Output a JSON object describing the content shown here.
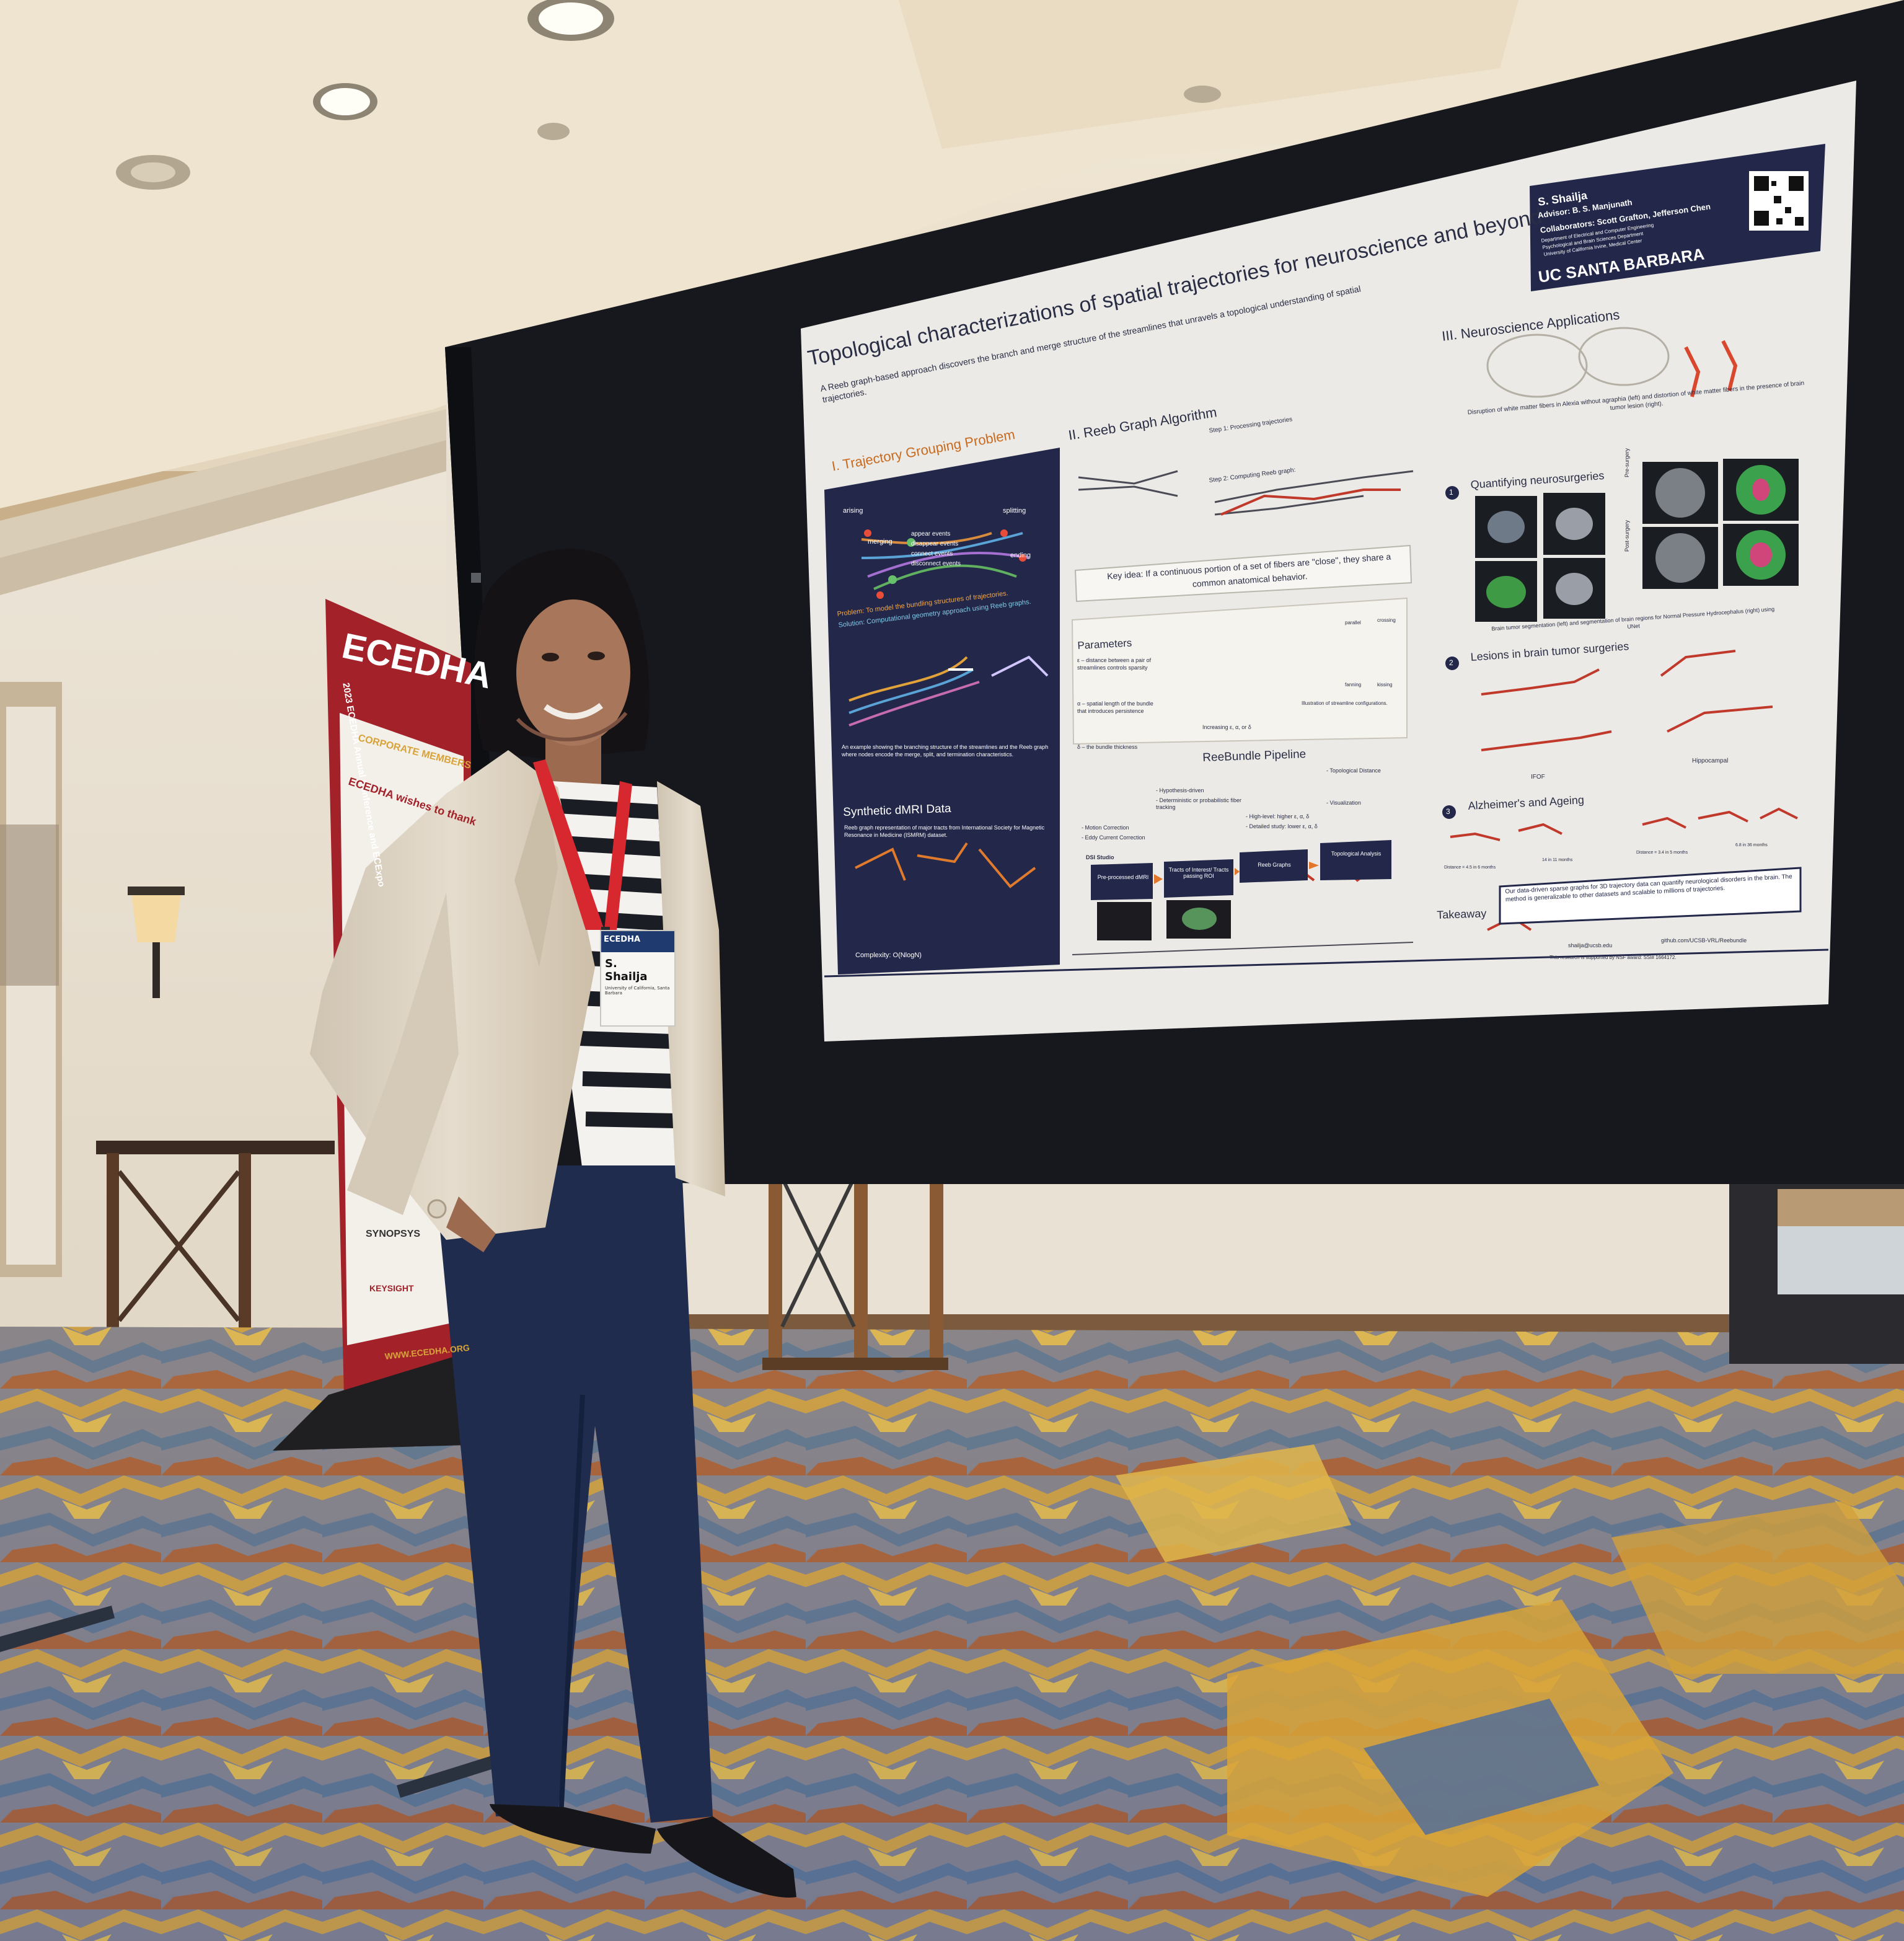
{
  "banner": {
    "logo_text": "ECEDHA",
    "event_line": "2023 ECEDHA Annual Conference and ECExpo",
    "section_label": "CORPORATE MEMBERS",
    "thanks_line": "ECEDHA wishes to thank",
    "sponsor_1": "SYNOPSYS",
    "sponsor_2": "KEYSIGHT",
    "website": "WWW.ECEDHA.ORG"
  },
  "badge": {
    "header": "ECEDHA",
    "name_first": "S.",
    "name_last": "Shailja",
    "affiliation": "University of California, Santa Barbara"
  },
  "poster": {
    "title": "Topological characterizations of spatial trajectories for neuroscience and beyond",
    "subtitle": "A Reeb graph-based approach discovers the branch and merge structure of the streamlines that unravels a topological understanding of spatial trajectories.",
    "author": "S. Shailja",
    "advisor": "Advisor: B. S. Manjunath",
    "collaborators": "Collaborators: Scott Grafton, Jefferson Chen",
    "dept_1": "Department of Electrical and Computer Engineering",
    "dept_2": "Psychological and Brain Sciences Department",
    "dept_3": "University of California Irvine, Medical Center",
    "university": "UC SANTA BARBARA",
    "section_1": "I. Trajectory Grouping Problem",
    "section_1_labels": [
      "arising",
      "merging",
      "splitting",
      "ending",
      "appear events",
      "disappear events",
      "connect events",
      "disconnect events"
    ],
    "problem": "Problem: To model the bundling structures of trajectories.",
    "solution": "Solution: Computational geometry approach using Reeb graphs.",
    "example_caption": "An example showing the branching structure of the streamlines and the Reeb graph where nodes encode the merge, split, and termination characteristics.",
    "synthetic_title": "Synthetic dMRI Data",
    "synthetic_text": "Reeb graph representation of major tracts from International Society for Magnetic Resonance in Medicine (ISMRM) dataset.",
    "complexity": "Complexity: O(NlogN)",
    "section_2": "II. Reeb Graph Algorithm",
    "step_1": "Step 1: Processing trajectories",
    "step_2": "Step 2: Computing Reeb graph:",
    "key_idea": "Key idea: If a continuous portion of a set of fibers are \"close\", they share a common anatomical behavior.",
    "parameters_title": "Parameters",
    "param_eps": "ε – distance between a pair of streamlines controls sparsity",
    "param_alpha": "α – spatial length of the bundle that introduces persistence",
    "param_delta": "δ – the bundle thickness",
    "param_axis": "Increasing ε, α, or δ",
    "param_labels": [
      "parallel",
      "crossing",
      "fanning",
      "kissing"
    ],
    "param_caption": "Illustration of streamline configurations.",
    "pipeline_title": "ReeBundle Pipeline",
    "pipeline_steps": [
      "Pre-processed dMRI",
      "Tracts of Interest/ Tracts passing ROI",
      "Reeb Graphs",
      "Topological Analysis"
    ],
    "pipeline_notes": [
      "- Motion Correction",
      "- Eddy Current Correction",
      "- Hypothesis-driven",
      "- Deterministic or probabilistic fiber tracking",
      "- High-level: higher ε, α, δ",
      "- Detailed study: lower ε, α, δ",
      "- Topological Distance",
      "- Visualization"
    ],
    "dsi_label": "DSI Studio",
    "section_3": "III. Neuroscience Applications",
    "alexia_caption": "Disruption of white matter fibers in Alexia without agraphia (left) and distortion of white matter fibers in the presence of brain tumor lesion (right).",
    "app_1_num": "1",
    "app_1": "Quantifying neurosurgeries",
    "app_1_caption": "Brain tumor segmentation (left) and segmentation of brain regions for Normal Pressure Hydrocephalus (right) using UNet",
    "pre_surgery": "Pre-surgery",
    "post_surgery": "Post-surgery",
    "app_2_num": "2",
    "app_2": "Lesions in brain tumor surgeries",
    "app_2_labels": [
      "IFOF",
      "Hippocampal"
    ],
    "app_3_num": "3",
    "app_3": "Alzheimer's and Ageing",
    "app_3_labels": [
      "Distance = 4.5 in 6 months",
      "14 in 11 months",
      "Distance = 3.4 in 5 months",
      "6.8 in 36 months"
    ],
    "takeaway_label": "Takeaway",
    "takeaway": "Our data-driven sparse graphs for 3D trajectory data can quantify neurological disorders in the brain. The method is generalizable to other datasets and scalable to millions of trajectories.",
    "email": "shailja@ucsb.edu",
    "github": "github.com/UCSB-VRL/Reebundle",
    "funding": "This research is supported by NSF award: SSI# 1664172."
  },
  "colors": {
    "poster_navy": "#23284a",
    "poster_bg": "#eceae6",
    "board_black": "#16181d",
    "banner_red": "#a3222a",
    "carpet_gold": "#d9a537",
    "carpet_blue": "#5b7194",
    "ceiling_cream": "#efe6d5",
    "blazer_beige": "#ddd3c4",
    "trousers_navy": "#1f2c4e",
    "lanyard_red": "#d6282e"
  }
}
